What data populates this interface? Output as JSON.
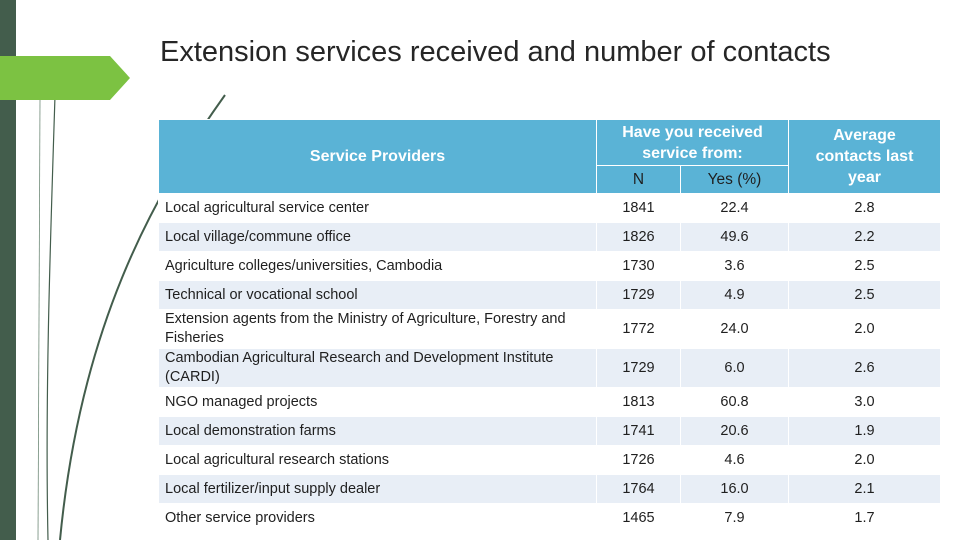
{
  "title": "Extension services received and number of contacts",
  "table": {
    "header_providers": "Service Providers",
    "header_received": "Have you received service from:",
    "header_n": "N",
    "header_yes": "Yes (%)",
    "header_avg": "Average contacts last year",
    "rows": [
      {
        "provider": "Local agricultural service center",
        "n": "1841",
        "yes": "22.4",
        "avg": "2.8"
      },
      {
        "provider": "Local village/commune office",
        "n": "1826",
        "yes": "49.6",
        "avg": "2.2"
      },
      {
        "provider": "Agriculture colleges/universities, Cambodia",
        "n": "1730",
        "yes": "3.6",
        "avg": "2.5"
      },
      {
        "provider": "Technical or vocational school",
        "n": "1729",
        "yes": "4.9",
        "avg": "2.5"
      },
      {
        "provider": "Extension agents from the Ministry of Agriculture, Forestry and Fisheries",
        "n": "1772",
        "yes": "24.0",
        "avg": "2.0"
      },
      {
        "provider": "Cambodian Agricultural Research and Development Institute (CARDI)",
        "n": "1729",
        "yes": "6.0",
        "avg": "2.6"
      },
      {
        "provider": "NGO managed projects",
        "n": "1813",
        "yes": "60.8",
        "avg": "3.0"
      },
      {
        "provider": "Local demonstration farms",
        "n": "1741",
        "yes": "20.6",
        "avg": "1.9"
      },
      {
        "provider": "Local agricultural research stations",
        "n": "1726",
        "yes": "4.6",
        "avg": "2.0"
      },
      {
        "provider": "Local fertilizer/input supply dealer",
        "n": "1764",
        "yes": "16.0",
        "avg": "2.1"
      },
      {
        "provider": "Other service providers",
        "n": "1465",
        "yes": "7.9",
        "avg": "1.7"
      }
    ]
  }
}
